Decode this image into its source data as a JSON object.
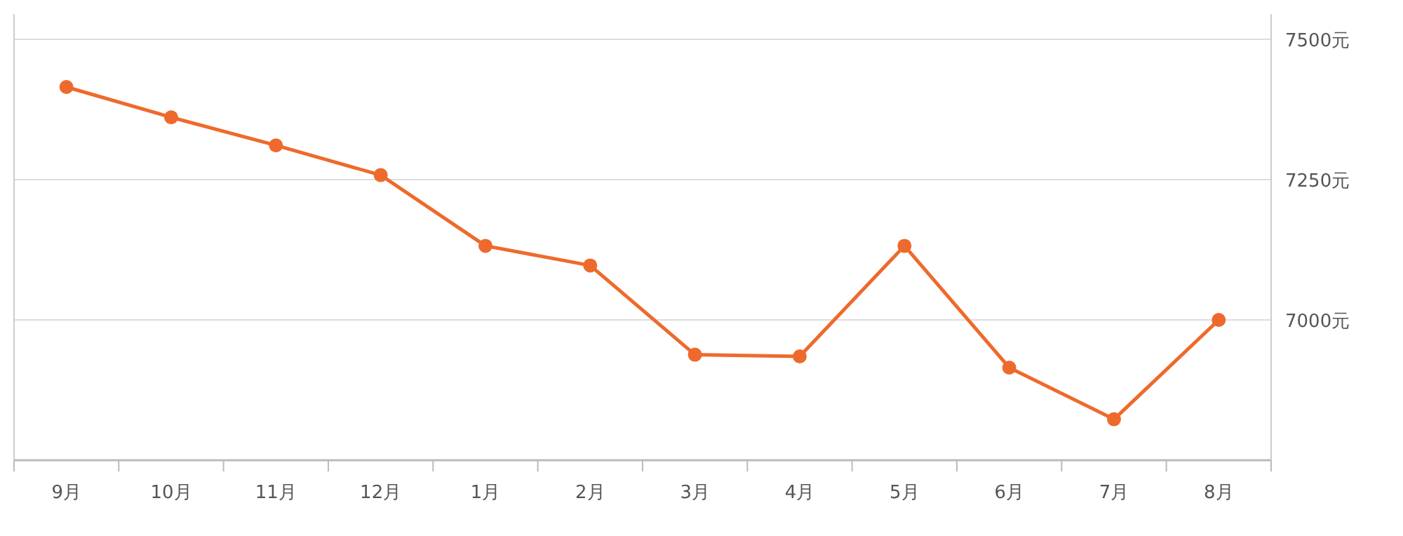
{
  "chart_data": {
    "type": "line",
    "categories": [
      "9月",
      "10月",
      "11月",
      "12月",
      "1月",
      "2月",
      "3月",
      "4月",
      "5月",
      "6月",
      "7月",
      "8月"
    ],
    "series": [
      {
        "color": "#ee6a2c",
        "values": [
          7415,
          7361,
          7311,
          7258,
          7132,
          7097,
          6938,
          6935,
          7132,
          6915,
          6823,
          7000
        ]
      }
    ],
    "ylim": [
      6750,
      7500
    ],
    "yticks": [
      {
        "value": 7000,
        "label": "7000元"
      },
      {
        "value": 7250,
        "label": "7250元"
      },
      {
        "value": 7500,
        "label": "7500元"
      }
    ],
    "grid": "y",
    "marker": "circle"
  }
}
